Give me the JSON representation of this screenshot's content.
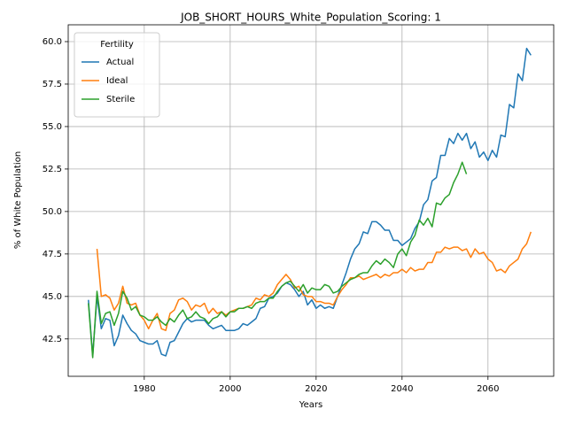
{
  "chart_data": {
    "type": "line",
    "title": "JOB_SHORT_HOURS_White_Population_Scoring: 1",
    "x_label": "Years",
    "y_label": "% of White Population",
    "legend_title": "Fertility",
    "legend": "upper left",
    "grid": true,
    "x": [
      1967,
      1968,
      1969,
      1970,
      1971,
      1972,
      1973,
      1974,
      1975,
      1976,
      1977,
      1978,
      1979,
      1980,
      1981,
      1982,
      1983,
      1984,
      1985,
      1986,
      1987,
      1988,
      1989,
      1990,
      1991,
      1992,
      1993,
      1994,
      1995,
      1996,
      1997,
      1998,
      1999,
      2000,
      2001,
      2002,
      2003,
      2004,
      2005,
      2006,
      2007,
      2008,
      2009,
      2010,
      2011,
      2012,
      2013,
      2014,
      2015,
      2016,
      2017,
      2018,
      2019,
      2020,
      2021,
      2022,
      2023,
      2024,
      2025,
      2026,
      2027,
      2028,
      2029,
      2030,
      2031,
      2032,
      2033,
      2034,
      2035,
      2036,
      2037,
      2038,
      2039,
      2040,
      2041,
      2042,
      2043,
      2044,
      2045,
      2046,
      2047,
      2048,
      2049,
      2050,
      2051,
      2052,
      2053,
      2054,
      2055,
      2056,
      2057,
      2058,
      2059,
      2060,
      2061,
      2062,
      2063,
      2064,
      2065,
      2066,
      2067,
      2068,
      2069,
      2070
    ],
    "series": [
      {
        "name": "Actual",
        "color": "#1f77b4",
        "values": [
          44.8,
          41.5,
          45.0,
          43.1,
          43.7,
          43.6,
          42.1,
          42.7,
          43.9,
          43.4,
          43.0,
          42.8,
          42.4,
          42.3,
          42.2,
          42.2,
          42.4,
          41.6,
          41.5,
          42.3,
          42.4,
          42.9,
          43.4,
          43.7,
          43.5,
          43.6,
          43.6,
          43.6,
          43.3,
          43.1,
          43.2,
          43.3,
          43.0,
          43.0,
          43.0,
          43.1,
          43.4,
          43.3,
          43.5,
          43.7,
          44.3,
          44.4,
          44.9,
          45.0,
          45.2,
          45.6,
          45.8,
          45.7,
          45.4,
          45.0,
          45.3,
          44.5,
          44.8,
          44.3,
          44.5,
          44.3,
          44.4,
          44.3,
          45.0,
          45.7,
          46.4,
          47.2,
          47.8,
          48.1,
          48.8,
          48.7,
          49.4,
          49.4,
          49.2,
          48.9,
          48.9,
          48.3,
          48.3,
          48.0,
          48.2,
          48.4,
          49.0,
          49.4,
          50.4,
          50.7,
          51.8,
          52.0,
          53.3,
          53.3,
          54.3,
          54.0,
          54.6,
          54.2,
          54.6,
          53.7,
          54.1,
          53.2,
          53.5,
          53.0,
          53.6,
          53.2,
          54.5,
          54.4,
          56.3,
          56.1,
          58.1,
          57.7,
          59.6,
          59.2
        ]
      },
      {
        "name": "Ideal",
        "color": "#ff7f0e",
        "values": [
          null,
          null,
          47.8,
          45.0,
          45.1,
          44.9,
          44.2,
          44.6,
          45.6,
          44.6,
          44.5,
          44.6,
          43.9,
          43.6,
          43.1,
          43.6,
          44.0,
          43.1,
          43.0,
          44.0,
          44.2,
          44.8,
          44.9,
          44.7,
          44.2,
          44.5,
          44.4,
          44.6,
          44.0,
          44.3,
          44.0,
          44.1,
          43.9,
          44.1,
          44.2,
          44.3,
          44.3,
          44.4,
          44.5,
          44.9,
          44.8,
          45.1,
          45.0,
          45.2,
          45.7,
          46.0,
          46.3,
          46.0,
          45.5,
          45.6,
          45.1,
          45.0,
          45.0,
          44.7,
          44.7,
          44.6,
          44.6,
          44.5,
          45.0,
          45.4,
          45.7,
          46.1,
          46.1,
          46.2,
          46.0,
          46.1,
          46.2,
          46.3,
          46.1,
          46.3,
          46.2,
          46.4,
          46.4,
          46.6,
          46.4,
          46.7,
          46.5,
          46.6,
          46.6,
          47.0,
          47.0,
          47.6,
          47.6,
          47.9,
          47.8,
          47.9,
          47.9,
          47.7,
          47.8,
          47.3,
          47.8,
          47.5,
          47.6,
          47.2,
          47.0,
          46.5,
          46.6,
          46.4,
          46.8,
          47.0,
          47.2,
          47.8,
          48.1,
          48.8
        ]
      },
      {
        "name": "Sterile",
        "color": "#2ca02c",
        "values": [
          44.6,
          41.4,
          45.3,
          43.4,
          44.0,
          44.1,
          43.3,
          44.0,
          45.3,
          44.9,
          44.2,
          44.4,
          43.9,
          43.8,
          43.6,
          43.6,
          43.8,
          43.5,
          43.3,
          43.7,
          43.5,
          43.9,
          44.2,
          43.7,
          43.8,
          44.1,
          43.8,
          43.7,
          43.4,
          43.7,
          43.8,
          44.1,
          43.8,
          44.1,
          44.1,
          44.3,
          44.3,
          44.4,
          44.3,
          44.6,
          44.7,
          44.7,
          44.9,
          44.9,
          45.3,
          45.6,
          45.8,
          45.9,
          45.6,
          45.3,
          45.7,
          45.2,
          45.5,
          45.4,
          45.4,
          45.7,
          45.6,
          45.2,
          45.3,
          45.6,
          45.8,
          46.0,
          46.1,
          46.3,
          46.4,
          46.4,
          46.8,
          47.1,
          46.9,
          47.2,
          47.0,
          46.7,
          47.5,
          47.8,
          47.4,
          48.2,
          48.6,
          49.5,
          49.2,
          49.6,
          49.1,
          50.5,
          50.4,
          50.8,
          51.0,
          51.7,
          52.2,
          52.9,
          52.2,
          null,
          null,
          null,
          null,
          null,
          null,
          null,
          null,
          null,
          null,
          null,
          null,
          null,
          null,
          null
        ]
      }
    ],
    "xlim": [
      1962.3,
      2075.3
    ],
    "xticks": [
      1980,
      2000,
      2020,
      2040,
      2060
    ],
    "ylim": [
      40.3,
      60.99
    ],
    "yticks": [
      42.5,
      {
        "value": 45,
        "label": "45.0"
      },
      47.5,
      {
        "value": 50,
        "label": "50.0"
      },
      52.5,
      {
        "value": 55,
        "label": "55.0"
      },
      57.5,
      {
        "value": 60,
        "label": "60.0"
      }
    ]
  }
}
